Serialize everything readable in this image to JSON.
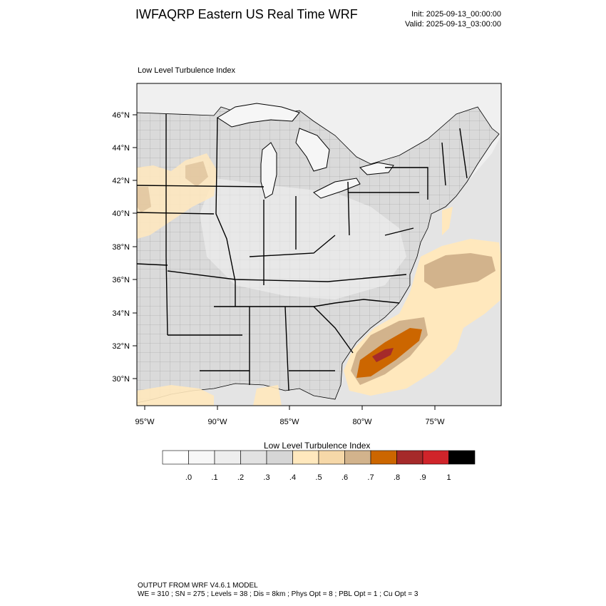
{
  "header": {
    "title": "IWFAQRP Eastern US Real Time WRF",
    "init": "Init: 2025-09-13_00:00:00",
    "valid": "Valid: 2025-09-13_03:00:00"
  },
  "map": {
    "subtitle": "Low Level Turbulence Index",
    "lat_labels": [
      "46°N",
      "44°N",
      "42°N",
      "40°N",
      "38°N",
      "36°N",
      "34°N",
      "32°N",
      "30°N"
    ],
    "lon_labels": [
      "95°W",
      "90°W",
      "85°W",
      "80°W",
      "75°W"
    ],
    "colors": {
      "land": "#d8d8d8",
      "land_light": "#ececec",
      "water": "#f2f2f2",
      "ocean": "#e2e2e2",
      "border": "#000000"
    }
  },
  "colorbar": {
    "title": "Low Level Turbulence Index",
    "labels": [
      ".0",
      ".1",
      ".2",
      ".3",
      ".4",
      ".5",
      ".6",
      ".7",
      ".8",
      ".9",
      "1"
    ],
    "colors": [
      "#ffffff",
      "#f7f7f7",
      "#eeeeee",
      "#e2e2e2",
      "#d6d6d6",
      "#ffe8bd",
      "#f6d8a8",
      "#d2b38c",
      "#cc6600",
      "#a52a2a",
      "#d0242a",
      "#000000"
    ]
  },
  "footer": {
    "line1": "OUTPUT FROM WRF V4.6.1 MODEL",
    "line2": "WE = 310 ; SN = 275 ; Levels = 38 ; Dis = 8km ; Phys Opt = 8 ; PBL Opt = 1 ; Cu Opt = 3"
  }
}
